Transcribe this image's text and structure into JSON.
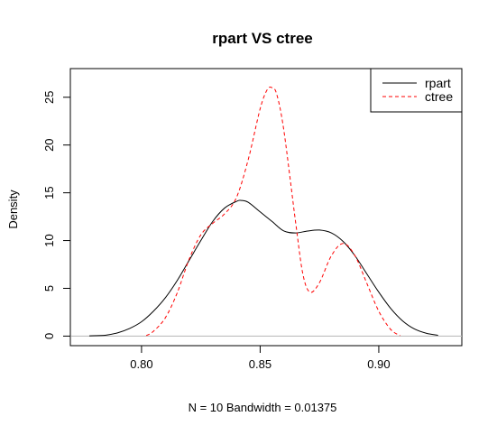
{
  "chart_data": {
    "type": "line",
    "title": "rpart VS ctree",
    "xlabel": "N = 10   Bandwidth = 0.01375",
    "ylabel": "Density",
    "xlim": [
      0.77,
      0.935
    ],
    "ylim": [
      -1,
      28
    ],
    "x_ticks": [
      0.8,
      0.85,
      0.9
    ],
    "x_tick_labels": [
      "0.80",
      "0.85",
      "0.90"
    ],
    "y_ticks": [
      0,
      5,
      10,
      15,
      20,
      25
    ],
    "y_tick_labels": [
      "0",
      "5",
      "10",
      "15",
      "20",
      "25"
    ],
    "baseline": 0,
    "legend_position": "top-right",
    "series": [
      {
        "name": "rpart",
        "color": "#000000",
        "dash": "solid",
        "x": [
          0.778,
          0.785,
          0.79,
          0.795,
          0.8,
          0.805,
          0.81,
          0.815,
          0.82,
          0.825,
          0.83,
          0.835,
          0.84,
          0.842,
          0.845,
          0.85,
          0.855,
          0.86,
          0.865,
          0.87,
          0.875,
          0.88,
          0.885,
          0.89,
          0.895,
          0.9,
          0.905,
          0.91,
          0.915,
          0.92,
          0.925
        ],
        "y": [
          0.03,
          0.1,
          0.35,
          0.8,
          1.5,
          2.6,
          4.0,
          5.8,
          7.9,
          10.0,
          12.0,
          13.4,
          14.1,
          14.2,
          14.0,
          13.0,
          12.0,
          11.0,
          10.8,
          11.0,
          11.1,
          10.8,
          9.9,
          8.4,
          6.5,
          4.6,
          2.9,
          1.6,
          0.75,
          0.3,
          0.08
        ]
      },
      {
        "name": "ctree",
        "color": "#ff0000",
        "dash": "dashed",
        "x": [
          0.802,
          0.805,
          0.81,
          0.815,
          0.82,
          0.825,
          0.83,
          0.835,
          0.84,
          0.845,
          0.85,
          0.853,
          0.855,
          0.857,
          0.86,
          0.865,
          0.868,
          0.871,
          0.875,
          0.88,
          0.885,
          0.89,
          0.895,
          0.9,
          0.905,
          0.909
        ],
        "y": [
          0.05,
          0.5,
          1.9,
          4.5,
          8.0,
          10.6,
          11.8,
          12.8,
          14.5,
          18.5,
          23.8,
          25.8,
          26.0,
          25.3,
          21.5,
          11.8,
          6.5,
          4.6,
          5.6,
          8.4,
          9.7,
          8.4,
          5.5,
          2.6,
          0.7,
          0.05
        ]
      }
    ]
  }
}
